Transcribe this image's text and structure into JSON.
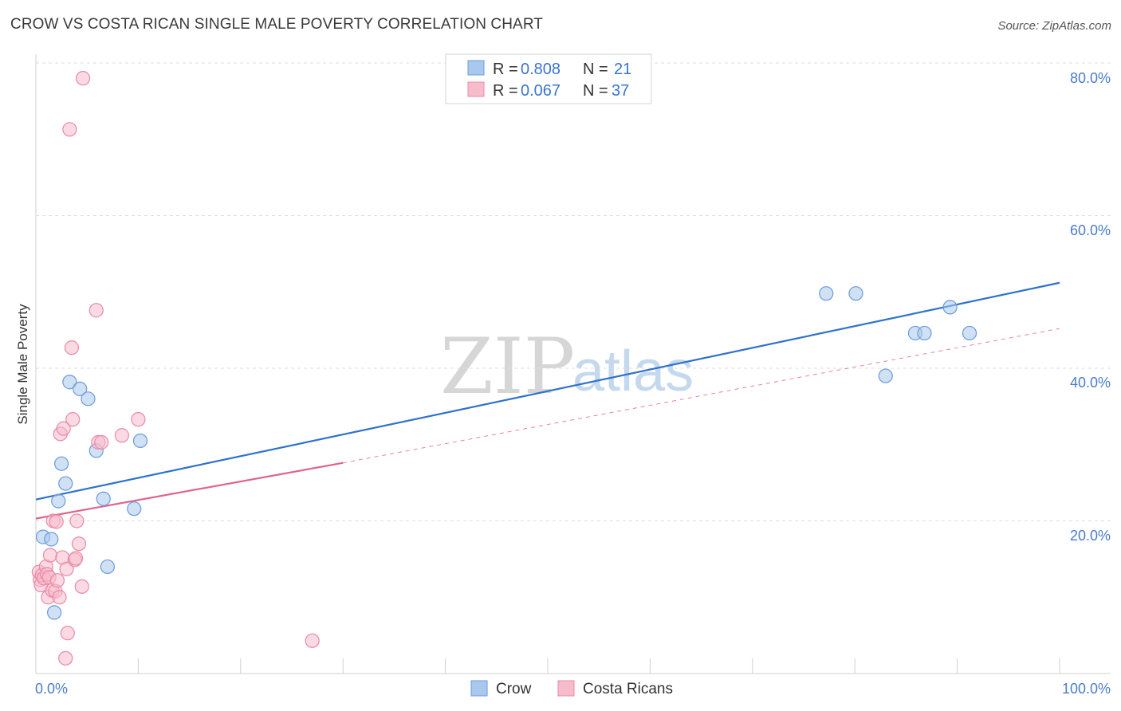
{
  "header": {
    "title": "CROW VS COSTA RICAN SINGLE MALE POVERTY CORRELATION CHART",
    "source": "Source: ZipAtlas.com"
  },
  "watermark": {
    "zip": "ZIP",
    "atlas": "atlas"
  },
  "colors": {
    "crow_fill": "#a9c8ee",
    "crow_stroke": "#6b9bd8",
    "crow_line": "#2e72cc",
    "costa_fill": "#f7bccc",
    "costa_stroke": "#e88aa6",
    "costa_line": "#e0648c",
    "tick_label": "#4a7cc7",
    "grid": "#dddddd"
  },
  "legend": {
    "rows": [
      {
        "r_label": "R = ",
        "r_value": "0.808",
        "n_label": "N = ",
        "n_value": "21"
      },
      {
        "r_label": "R = ",
        "r_value": "0.067",
        "n_label": "N = ",
        "n_value": "37"
      }
    ]
  },
  "chart_data": {
    "type": "scatter",
    "title": "CROW VS COSTA RICAN SINGLE MALE POVERTY CORRELATION CHART",
    "xlabel": "",
    "ylabel": "Single Male Poverty",
    "xlim": [
      0,
      100
    ],
    "ylim": [
      0,
      80
    ],
    "x_tick_labels": [
      "0.0%",
      "100.0%"
    ],
    "y_ticks": [
      20,
      40,
      60,
      80
    ],
    "y_tick_labels": [
      "20.0%",
      "40.0%",
      "60.0%",
      "80.0%"
    ],
    "grid": true,
    "legend_position": "top-center",
    "series": [
      {
        "name": "Crow",
        "r": 0.808,
        "n": 21,
        "points": [
          [
            0.7,
            17.9
          ],
          [
            1.5,
            17.6
          ],
          [
            1.8,
            8.0
          ],
          [
            2.2,
            22.6
          ],
          [
            2.5,
            27.5
          ],
          [
            2.9,
            24.9
          ],
          [
            3.3,
            38.2
          ],
          [
            4.3,
            37.3
          ],
          [
            5.1,
            36.0
          ],
          [
            5.9,
            29.2
          ],
          [
            6.6,
            22.9
          ],
          [
            7.0,
            14.0
          ],
          [
            9.6,
            21.6
          ],
          [
            10.2,
            30.5
          ],
          [
            77.2,
            49.8
          ],
          [
            80.1,
            49.8
          ],
          [
            85.9,
            44.6
          ],
          [
            86.8,
            44.6
          ],
          [
            89.3,
            48.0
          ],
          [
            91.2,
            44.6
          ],
          [
            83.0,
            39.0
          ]
        ],
        "trend": {
          "x0": 0,
          "y0": 22.8,
          "x1": 100,
          "y1": 51.2
        }
      },
      {
        "name": "Costa Ricans",
        "r": 0.067,
        "n": 37,
        "points": [
          [
            0.3,
            13.3
          ],
          [
            0.4,
            12.3
          ],
          [
            0.5,
            11.6
          ],
          [
            0.6,
            12.9
          ],
          [
            0.8,
            12.5
          ],
          [
            1.0,
            14.0
          ],
          [
            1.1,
            13.0
          ],
          [
            1.2,
            10.0
          ],
          [
            1.3,
            12.6
          ],
          [
            1.4,
            15.5
          ],
          [
            1.6,
            10.9
          ],
          [
            1.7,
            20.0
          ],
          [
            1.9,
            10.8
          ],
          [
            2.0,
            19.9
          ],
          [
            2.1,
            12.2
          ],
          [
            2.3,
            10.0
          ],
          [
            2.4,
            31.4
          ],
          [
            2.6,
            15.2
          ],
          [
            2.7,
            32.1
          ],
          [
            2.9,
            2.0
          ],
          [
            3.0,
            13.7
          ],
          [
            3.1,
            5.3
          ],
          [
            3.3,
            71.3
          ],
          [
            3.5,
            42.7
          ],
          [
            3.6,
            33.3
          ],
          [
            3.8,
            14.9
          ],
          [
            3.9,
            15.1
          ],
          [
            4.0,
            20.0
          ],
          [
            4.2,
            17.0
          ],
          [
            4.5,
            11.4
          ],
          [
            4.6,
            78.0
          ],
          [
            5.9,
            47.6
          ],
          [
            6.1,
            30.3
          ],
          [
            6.4,
            30.3
          ],
          [
            10.0,
            33.3
          ],
          [
            8.4,
            31.2
          ],
          [
            27.0,
            4.3
          ]
        ],
        "trend_solid": {
          "x0": 0,
          "y0": 20.3,
          "x1": 30,
          "y1": 27.6
        },
        "trend_dashed": {
          "x0": 30,
          "y0": 27.6,
          "x1": 100,
          "y1": 45.2
        }
      }
    ]
  },
  "bottom_legend": [
    {
      "label": "Crow"
    },
    {
      "label": "Costa Ricans"
    }
  ]
}
